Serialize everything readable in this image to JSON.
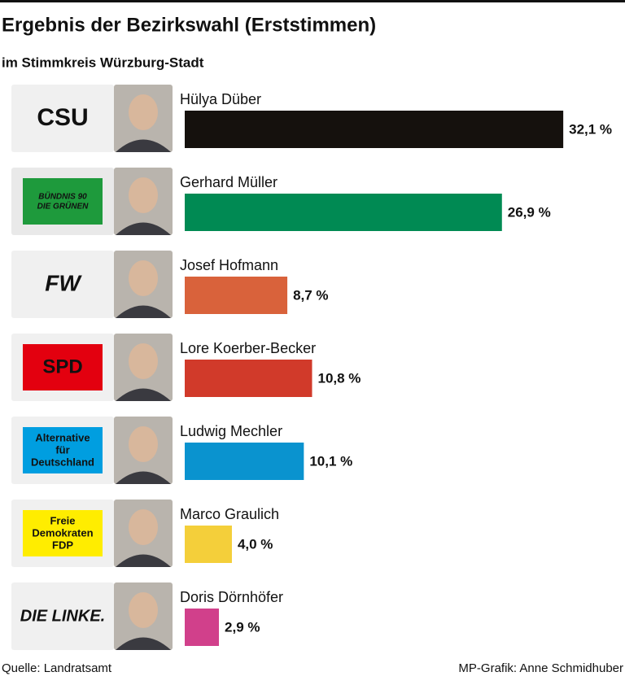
{
  "chart_data": {
    "type": "bar",
    "title": "Ergebnis der Bezirkswahl (Erststimmen)",
    "subtitle": "im Stimmkreis Würzburg-Stadt",
    "categories": [
      "Hülya Düber",
      "Gerhard Müller",
      "Josef Hofmann",
      "Lore Koerber-Becker",
      "Ludwig Mechler",
      "Marco Graulich",
      "Doris Dörnhöfer"
    ],
    "values": [
      32.1,
      26.9,
      8.7,
      10.8,
      10.1,
      4.0,
      2.9
    ],
    "value_labels": [
      "32,1 %",
      "26,9 %",
      "8,7 %",
      "10,8 %",
      "10,1 %",
      "4,0 %",
      "2,9 %"
    ],
    "colors": [
      "#15110d",
      "#008a53",
      "#d9623b",
      "#d13a2a",
      "#0a93cf",
      "#f4cf3a",
      "#d1408b"
    ],
    "party_logos": [
      [
        "CSU"
      ],
      [
        "BÜNDNIS 90",
        "DIE GRÜNEN"
      ],
      [
        "FW"
      ],
      [
        "SPD"
      ],
      [
        "Alternative",
        "für",
        "Deutschland"
      ],
      [
        "Freie",
        "Demokraten",
        "FDP"
      ],
      [
        "DIE LINKE."
      ]
    ],
    "source": "Quelle: Landratsamt",
    "credit": "MP-Grafik: Anne Schmidhuber"
  }
}
